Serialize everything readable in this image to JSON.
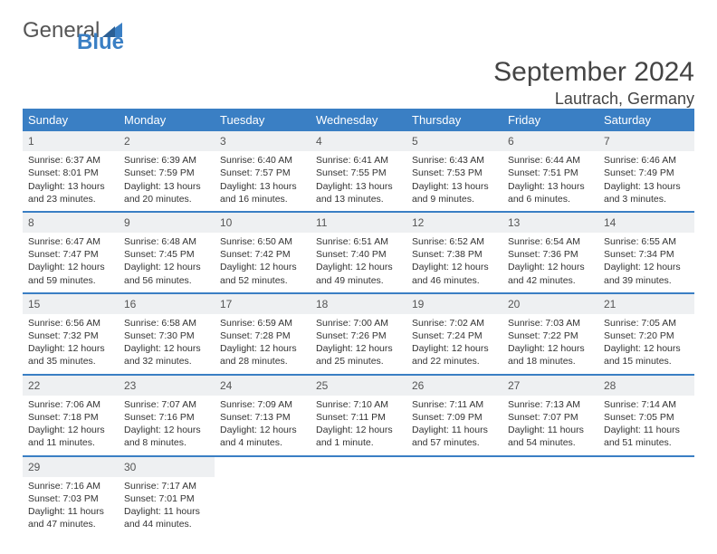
{
  "logo": {
    "main": "General",
    "sub": "Blue"
  },
  "title": "September 2024",
  "location": "Lautrach, Germany",
  "colors": {
    "accent": "#3a7fc4",
    "daynum_bg": "#eef0f2",
    "text": "#333333",
    "header_text": "#ffffff",
    "page_bg": "#ffffff"
  },
  "layout": {
    "columns": 7,
    "rows": 5,
    "cell_min_height": 84,
    "font_family": "Arial",
    "body_font_size": 10.5,
    "header_font_size": 13,
    "title_font_size": 30
  },
  "weekdays": [
    "Sunday",
    "Monday",
    "Tuesday",
    "Wednesday",
    "Thursday",
    "Friday",
    "Saturday"
  ],
  "weeks": [
    [
      {
        "num": "1",
        "sunrise": "Sunrise: 6:37 AM",
        "sunset": "Sunset: 8:01 PM",
        "daylight": "Daylight: 13 hours and 23 minutes."
      },
      {
        "num": "2",
        "sunrise": "Sunrise: 6:39 AM",
        "sunset": "Sunset: 7:59 PM",
        "daylight": "Daylight: 13 hours and 20 minutes."
      },
      {
        "num": "3",
        "sunrise": "Sunrise: 6:40 AM",
        "sunset": "Sunset: 7:57 PM",
        "daylight": "Daylight: 13 hours and 16 minutes."
      },
      {
        "num": "4",
        "sunrise": "Sunrise: 6:41 AM",
        "sunset": "Sunset: 7:55 PM",
        "daylight": "Daylight: 13 hours and 13 minutes."
      },
      {
        "num": "5",
        "sunrise": "Sunrise: 6:43 AM",
        "sunset": "Sunset: 7:53 PM",
        "daylight": "Daylight: 13 hours and 9 minutes."
      },
      {
        "num": "6",
        "sunrise": "Sunrise: 6:44 AM",
        "sunset": "Sunset: 7:51 PM",
        "daylight": "Daylight: 13 hours and 6 minutes."
      },
      {
        "num": "7",
        "sunrise": "Sunrise: 6:46 AM",
        "sunset": "Sunset: 7:49 PM",
        "daylight": "Daylight: 13 hours and 3 minutes."
      }
    ],
    [
      {
        "num": "8",
        "sunrise": "Sunrise: 6:47 AM",
        "sunset": "Sunset: 7:47 PM",
        "daylight": "Daylight: 12 hours and 59 minutes."
      },
      {
        "num": "9",
        "sunrise": "Sunrise: 6:48 AM",
        "sunset": "Sunset: 7:45 PM",
        "daylight": "Daylight: 12 hours and 56 minutes."
      },
      {
        "num": "10",
        "sunrise": "Sunrise: 6:50 AM",
        "sunset": "Sunset: 7:42 PM",
        "daylight": "Daylight: 12 hours and 52 minutes."
      },
      {
        "num": "11",
        "sunrise": "Sunrise: 6:51 AM",
        "sunset": "Sunset: 7:40 PM",
        "daylight": "Daylight: 12 hours and 49 minutes."
      },
      {
        "num": "12",
        "sunrise": "Sunrise: 6:52 AM",
        "sunset": "Sunset: 7:38 PM",
        "daylight": "Daylight: 12 hours and 46 minutes."
      },
      {
        "num": "13",
        "sunrise": "Sunrise: 6:54 AM",
        "sunset": "Sunset: 7:36 PM",
        "daylight": "Daylight: 12 hours and 42 minutes."
      },
      {
        "num": "14",
        "sunrise": "Sunrise: 6:55 AM",
        "sunset": "Sunset: 7:34 PM",
        "daylight": "Daylight: 12 hours and 39 minutes."
      }
    ],
    [
      {
        "num": "15",
        "sunrise": "Sunrise: 6:56 AM",
        "sunset": "Sunset: 7:32 PM",
        "daylight": "Daylight: 12 hours and 35 minutes."
      },
      {
        "num": "16",
        "sunrise": "Sunrise: 6:58 AM",
        "sunset": "Sunset: 7:30 PM",
        "daylight": "Daylight: 12 hours and 32 minutes."
      },
      {
        "num": "17",
        "sunrise": "Sunrise: 6:59 AM",
        "sunset": "Sunset: 7:28 PM",
        "daylight": "Daylight: 12 hours and 28 minutes."
      },
      {
        "num": "18",
        "sunrise": "Sunrise: 7:00 AM",
        "sunset": "Sunset: 7:26 PM",
        "daylight": "Daylight: 12 hours and 25 minutes."
      },
      {
        "num": "19",
        "sunrise": "Sunrise: 7:02 AM",
        "sunset": "Sunset: 7:24 PM",
        "daylight": "Daylight: 12 hours and 22 minutes."
      },
      {
        "num": "20",
        "sunrise": "Sunrise: 7:03 AM",
        "sunset": "Sunset: 7:22 PM",
        "daylight": "Daylight: 12 hours and 18 minutes."
      },
      {
        "num": "21",
        "sunrise": "Sunrise: 7:05 AM",
        "sunset": "Sunset: 7:20 PM",
        "daylight": "Daylight: 12 hours and 15 minutes."
      }
    ],
    [
      {
        "num": "22",
        "sunrise": "Sunrise: 7:06 AM",
        "sunset": "Sunset: 7:18 PM",
        "daylight": "Daylight: 12 hours and 11 minutes."
      },
      {
        "num": "23",
        "sunrise": "Sunrise: 7:07 AM",
        "sunset": "Sunset: 7:16 PM",
        "daylight": "Daylight: 12 hours and 8 minutes."
      },
      {
        "num": "24",
        "sunrise": "Sunrise: 7:09 AM",
        "sunset": "Sunset: 7:13 PM",
        "daylight": "Daylight: 12 hours and 4 minutes."
      },
      {
        "num": "25",
        "sunrise": "Sunrise: 7:10 AM",
        "sunset": "Sunset: 7:11 PM",
        "daylight": "Daylight: 12 hours and 1 minute."
      },
      {
        "num": "26",
        "sunrise": "Sunrise: 7:11 AM",
        "sunset": "Sunset: 7:09 PM",
        "daylight": "Daylight: 11 hours and 57 minutes."
      },
      {
        "num": "27",
        "sunrise": "Sunrise: 7:13 AM",
        "sunset": "Sunset: 7:07 PM",
        "daylight": "Daylight: 11 hours and 54 minutes."
      },
      {
        "num": "28",
        "sunrise": "Sunrise: 7:14 AM",
        "sunset": "Sunset: 7:05 PM",
        "daylight": "Daylight: 11 hours and 51 minutes."
      }
    ],
    [
      {
        "num": "29",
        "sunrise": "Sunrise: 7:16 AM",
        "sunset": "Sunset: 7:03 PM",
        "daylight": "Daylight: 11 hours and 47 minutes."
      },
      {
        "num": "30",
        "sunrise": "Sunrise: 7:17 AM",
        "sunset": "Sunset: 7:01 PM",
        "daylight": "Daylight: 11 hours and 44 minutes."
      },
      {
        "empty": true
      },
      {
        "empty": true
      },
      {
        "empty": true
      },
      {
        "empty": true
      },
      {
        "empty": true
      }
    ]
  ]
}
